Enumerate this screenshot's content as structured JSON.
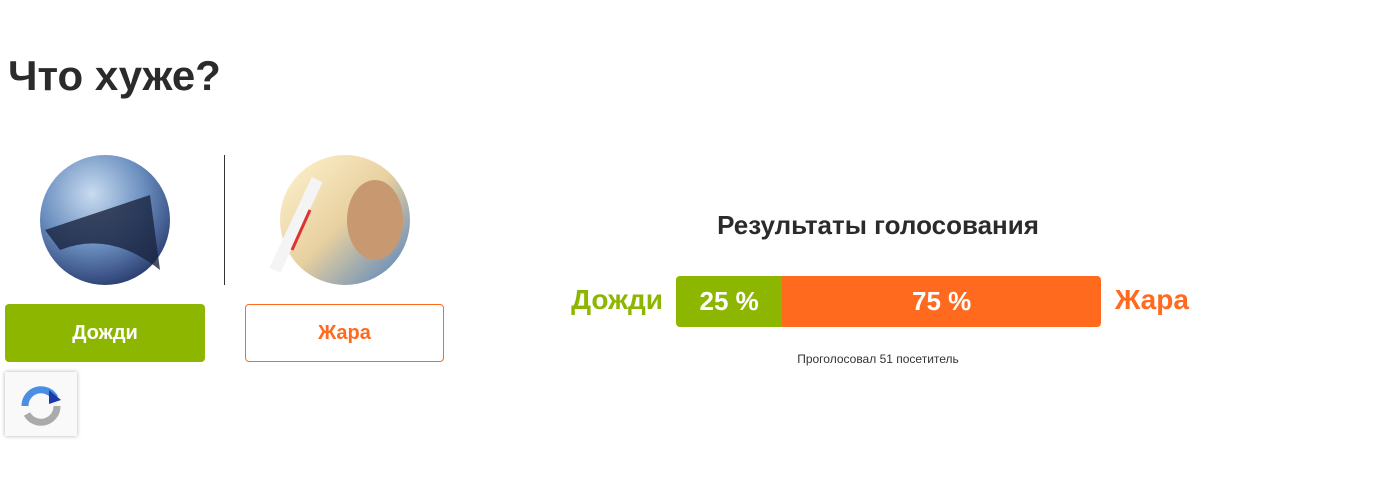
{
  "title": "Что хуже?",
  "options": [
    {
      "label": "Дожди",
      "color": "#8db600"
    },
    {
      "label": "Жара",
      "color": "#ff6a1f"
    }
  ],
  "results": {
    "title": "Результаты голосования",
    "segments": [
      {
        "value": 25,
        "label": "25 %"
      },
      {
        "value": 75,
        "label": "75 %"
      }
    ],
    "footer": "Проголосовал 51 посетитель"
  }
}
